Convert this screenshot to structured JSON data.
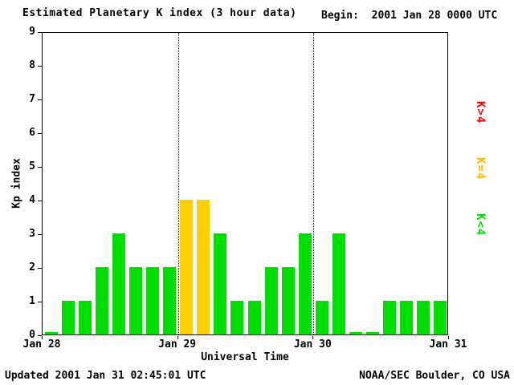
{
  "header": {
    "title": "Estimated Planetary K index (3 hour data)",
    "begin_label": "Begin:",
    "begin_value": "2001 Jan 28 0000 UTC"
  },
  "footer": {
    "updated": "Updated 2001 Jan 31 02:45:01 UTC",
    "source": "NOAA/SEC Boulder, CO USA"
  },
  "legend": [
    {
      "label": "K>4",
      "color": "#ff0000"
    },
    {
      "label": "K=4",
      "color": "#ffb800"
    },
    {
      "label": "K<4",
      "color": "#00dd00"
    }
  ],
  "chart_data": {
    "type": "bar",
    "title": "Estimated Planetary K index (3 hour data)",
    "xlabel": "Universal Time",
    "ylabel": "Kp index",
    "ylim": [
      0,
      9
    ],
    "yticks": [
      0,
      1,
      2,
      3,
      4,
      5,
      6,
      7,
      8,
      9
    ],
    "xticks": [
      "Jan 28",
      "Jan 29",
      "Jan 30",
      "Jan 31"
    ],
    "bars_per_day": 8,
    "values": [
      0,
      1,
      1,
      2,
      3,
      2,
      2,
      2,
      4,
      4,
      3,
      1,
      1,
      2,
      2,
      3,
      1,
      3,
      0,
      0,
      1,
      1,
      1,
      1
    ],
    "color_rule": "green if Kp<4, yellow if Kp=4, red if Kp>4",
    "colors": {
      "low": "#00dd00",
      "mid": "#ffd000",
      "high": "#ff0000"
    },
    "gridlines": "dotted vertical lines at day boundaries",
    "legend_position": "right, rotated"
  }
}
